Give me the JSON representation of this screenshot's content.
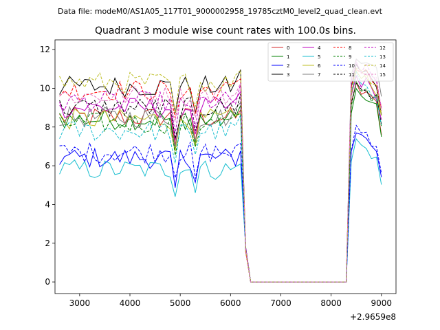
{
  "chart_data": {
    "type": "line",
    "suptitle": "Data file: modeM0/AS1A05_117T01_9000002958_19785cztM0_level2_quad_clean.evt",
    "title": "Quadrant 3 module wise count rates with 100.0s bins.",
    "xlabel": "",
    "ylabel": "",
    "x_offset_label": "+2.9659e8",
    "xlim": [
      2510,
      9290
    ],
    "ylim": [
      -0.6,
      12.5
    ],
    "xticks": [
      3000,
      4000,
      5000,
      6000,
      7000,
      8000,
      9000
    ],
    "xtick_labels": [
      "3000",
      "4000",
      "5000",
      "6000",
      "7000",
      "8000",
      "9000"
    ],
    "yticks": [
      0,
      2,
      4,
      6,
      8,
      10,
      12
    ],
    "ytick_labels": [
      "0",
      "2",
      "4",
      "6",
      "8",
      "10",
      "12"
    ],
    "legend_position": "top-right",
    "series": [
      {
        "name": "0",
        "color": "#d62728",
        "dash": false
      },
      {
        "name": "1",
        "color": "#008000",
        "dash": false
      },
      {
        "name": "2",
        "color": "#0000ff",
        "dash": false
      },
      {
        "name": "3",
        "color": "#000000",
        "dash": false
      },
      {
        "name": "4",
        "color": "#bf00bf",
        "dash": false
      },
      {
        "name": "5",
        "color": "#17becf",
        "dash": false
      },
      {
        "name": "6",
        "color": "#bcbd22",
        "dash": false
      },
      {
        "name": "7",
        "color": "#7f7f7f",
        "dash": false
      },
      {
        "name": "8",
        "color": "#ff0000",
        "dash": true
      },
      {
        "name": "9",
        "color": "#008000",
        "dash": true
      },
      {
        "name": "10",
        "color": "#0000ff",
        "dash": true
      },
      {
        "name": "11",
        "color": "#000000",
        "dash": true
      },
      {
        "name": "12",
        "color": "#bf00bf",
        "dash": true
      },
      {
        "name": "13",
        "color": "#17becf",
        "dash": true
      },
      {
        "name": "14",
        "color": "#bcbd22",
        "dash": true
      },
      {
        "name": "15",
        "color": "#e377c2",
        "dash": true
      }
    ],
    "series_values": {
      "x_start": 2600,
      "x_step": 100,
      "levels": [
        8.5,
        8.4,
        6.4,
        10.1,
        9.0,
        5.8,
        8.4,
        8.5,
        9.9,
        8.2,
        6.7,
        9.0,
        9.3,
        7.8,
        10.3,
        9.6
      ],
      "dip_x": [
        4900,
        5300
      ],
      "gap_start": 6300,
      "gap_end": 8300,
      "end_levels": [
        9.8,
        9.5,
        7.5,
        10.8,
        10.3,
        7.0,
        10.5,
        11.5,
        10.8,
        10.0,
        7.7,
        10.0,
        11.0,
        10.3,
        10.8,
        11.0
      ]
    }
  }
}
